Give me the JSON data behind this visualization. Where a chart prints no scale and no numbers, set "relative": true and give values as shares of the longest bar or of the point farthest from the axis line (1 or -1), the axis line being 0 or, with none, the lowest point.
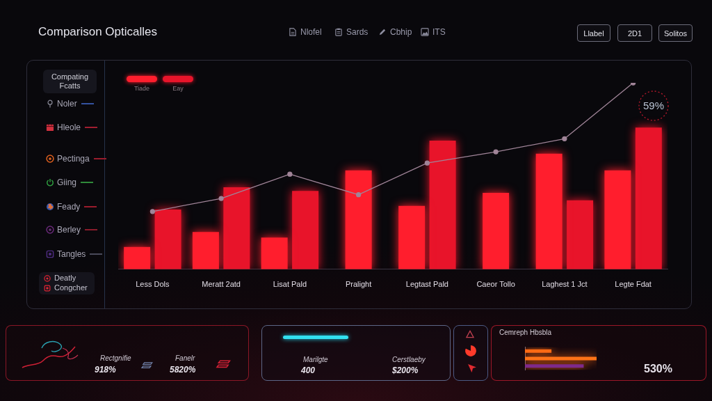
{
  "chart_data": [
    {
      "type": "bar",
      "title": "Comparison Opticalles",
      "categories": [
        "Less Dols",
        "Meratt 2atd",
        "Lisat Pald",
        "Pralight",
        "Legtast Pald",
        "Caeor Tollo",
        "Laghest 1 Jct",
        "Legte Fdat"
      ],
      "series": [
        {
          "name": "Tiade",
          "color": "#ff1e2d",
          "values": [
            0.12,
            0.2,
            0.17,
            0.53,
            0.34,
            0.41,
            0.62,
            0.53
          ]
        },
        {
          "name": "Eay",
          "color": "#e8142a",
          "values": [
            0.32,
            0.44,
            0.42,
            null,
            0.69,
            null,
            0.37,
            0.76
          ]
        },
        {
          "type": "line",
          "color": "#a08498",
          "values": [
            0.31,
            0.38,
            0.51,
            0.4,
            0.57,
            0.63,
            0.7,
            1
          ]
        }
      ],
      "relative": true,
      "legend": "top left",
      "marker": "circle",
      "annotations": [
        "Nlofel",
        "Sards",
        "Cbhip",
        "ITS",
        "Llabel",
        "2D1",
        "Solitos",
        "Compating Fcatts",
        "Noler",
        "Hleole",
        "Pectinga",
        "Giing",
        "Feady",
        "Berley",
        "Tangles",
        "Deatly",
        "Congcher",
        "59%",
        "Rectgnifie",
        "918%",
        "Fanelr",
        "5820%",
        "Marilgte",
        "400",
        "Cerstlaeby",
        "$200%"
      ]
    },
    {
      "type": "bar",
      "orientation": "horizontal",
      "title": "Cemreph Hbsbla",
      "categories": [
        null,
        null,
        null
      ],
      "values": [
        0.37,
        1,
        0.82
      ],
      "colors": [
        "#ff6a14",
        "#ff7418",
        "#7e2a8a"
      ],
      "relative": true,
      "annotations": [
        "530%"
      ]
    }
  ]
}
